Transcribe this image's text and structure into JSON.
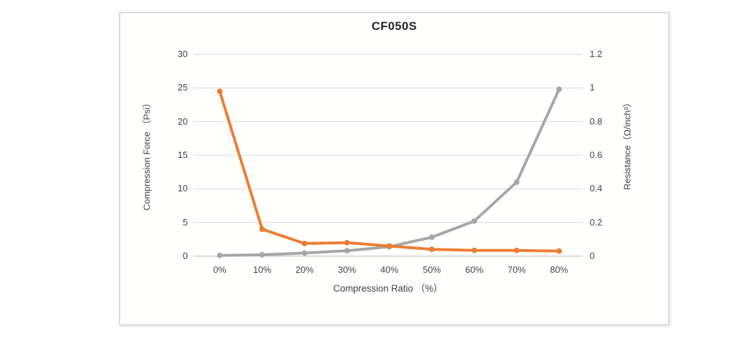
{
  "chart_data": {
    "type": "line",
    "title": "CF050S",
    "categories": [
      "0%",
      "10%",
      "20%",
      "30%",
      "40%",
      "50%",
      "60%",
      "70%",
      "80%"
    ],
    "x_axis": {
      "title": "Compression Ratio （%）"
    },
    "left_axis": {
      "title": "Compression Force （Psi）",
      "range": [
        0,
        30
      ],
      "tick_labels": [
        "30",
        "25",
        "20",
        "15",
        "10",
        "5",
        "0"
      ]
    },
    "right_axis": {
      "title": "Resistance（Ω/inch³）",
      "range": [
        0,
        1.2
      ],
      "tick_labels": [
        "1.2",
        "1",
        "0.8",
        "0.6",
        "0.4",
        "0.2",
        "0"
      ]
    },
    "grid": true,
    "legend": "none",
    "series": [
      {
        "name": "Compression Force (Psi)",
        "axis": "left",
        "color": "#A6A6A6",
        "values": [
          0.1,
          0.2,
          0.45,
          0.8,
          1.4,
          2.8,
          5.2,
          11,
          24.8
        ]
      },
      {
        "name": "Resistance (Ω/inch³)",
        "axis": "right",
        "color": "#ED7D31",
        "values": [
          0.98,
          0.16,
          0.075,
          0.08,
          0.06,
          0.04,
          0.034,
          0.034,
          0.03
        ]
      }
    ]
  },
  "colors": {
    "gridline": "#D9D9D9",
    "axis_line": "#C6C6C6",
    "text": "#404040",
    "panel_border": "#DADADA",
    "series_orange": "#ED7D31",
    "series_gray": "#A6A6A6"
  }
}
